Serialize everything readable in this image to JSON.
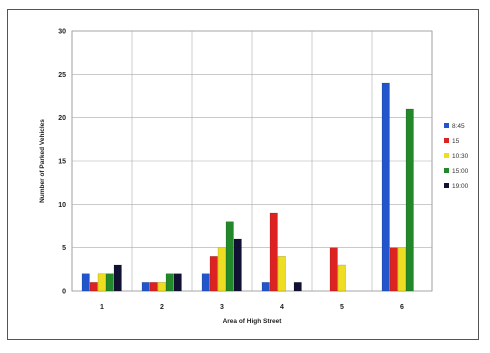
{
  "chart_data": {
    "type": "bar",
    "title": "",
    "xlabel": "Area of High Street",
    "ylabel": "Number of Parked Vehicles",
    "categories": [
      "1",
      "2",
      "3",
      "4",
      "5",
      "6"
    ],
    "ylim": [
      0,
      30
    ],
    "yticks": [
      0,
      5,
      10,
      15,
      20,
      25,
      30
    ],
    "grid": true,
    "legend_position": "right",
    "series": [
      {
        "name": "8:45",
        "color": "#2255cc",
        "values": [
          2,
          1,
          2,
          1,
          0,
          24
        ]
      },
      {
        "name": "15",
        "color": "#dd2222",
        "values": [
          1,
          1,
          4,
          9,
          5,
          5
        ]
      },
      {
        "name": "10:30",
        "color": "#eedd22",
        "values": [
          2,
          1,
          5,
          4,
          3,
          5
        ]
      },
      {
        "name": "15:00",
        "color": "#22882a",
        "values": [
          2,
          2,
          8,
          0,
          0,
          21
        ]
      },
      {
        "name": "19:00",
        "color": "#111133",
        "values": [
          3,
          2,
          6,
          1,
          0,
          0
        ]
      }
    ]
  }
}
